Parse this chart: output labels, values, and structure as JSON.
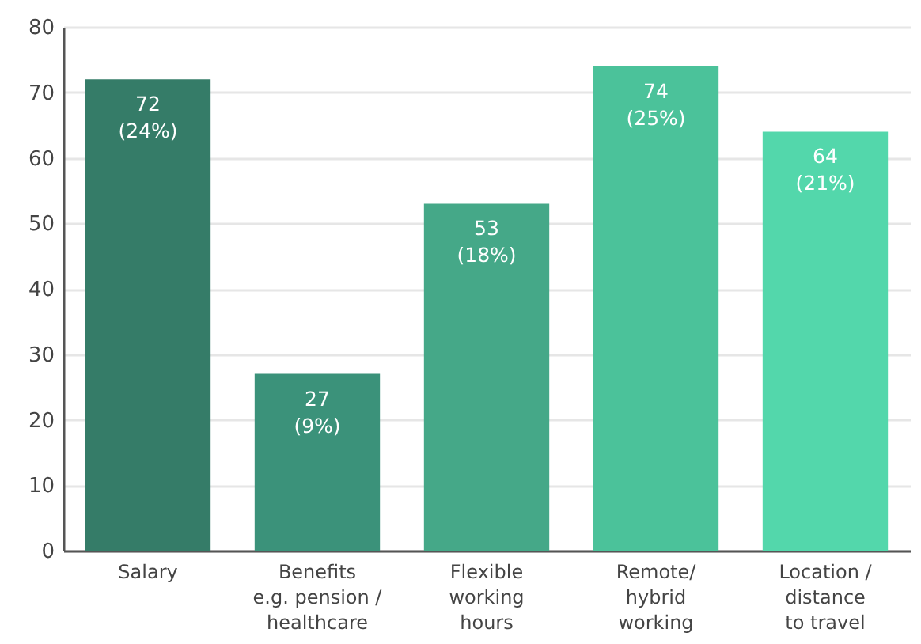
{
  "chart_data": {
    "type": "bar",
    "categories": [
      "Salary",
      "Benefits\ne.g. pension /\nhealthcare",
      "Flexible\nworking\nhours",
      "Remote/\nhybrid\nworking",
      "Location /\ndistance\nto travel"
    ],
    "values": [
      72,
      27,
      53,
      74,
      64
    ],
    "colors": [
      "#357c68",
      "#3b927a",
      "#45a888",
      "#4bc29a",
      "#53d7ab"
    ],
    "value_labels": [
      "72\n(24%)",
      "27\n(9%)",
      "53\n(18%)",
      "74\n(25%)",
      "64\n(21%)"
    ],
    "ylim": [
      0,
      80
    ],
    "yticks": [
      0,
      10,
      20,
      30,
      40,
      50,
      60,
      70,
      80
    ],
    "grid": "y"
  }
}
